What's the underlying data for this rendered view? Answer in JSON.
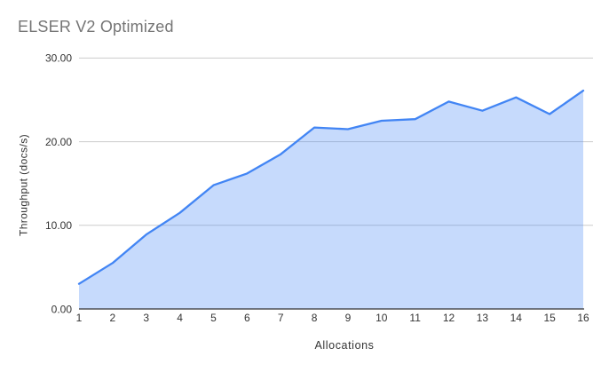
{
  "chart_data": {
    "type": "area",
    "title": "ELSER V2 Optimized",
    "xlabel": "Allocations",
    "ylabel": "Throughput (docs/s)",
    "x": [
      1,
      2,
      3,
      4,
      5,
      6,
      7,
      8,
      9,
      10,
      11,
      12,
      13,
      14,
      15,
      16
    ],
    "xtick_labels": [
      "1",
      "2",
      "3",
      "4",
      "5",
      "6",
      "7",
      "8",
      "9",
      "10",
      "11",
      "12",
      "13",
      "14",
      "15",
      "16"
    ],
    "values": [
      3.0,
      5.5,
      8.9,
      11.5,
      14.8,
      16.2,
      18.5,
      21.7,
      21.5,
      22.5,
      22.7,
      24.8,
      23.7,
      25.3,
      23.3,
      26.1
    ],
    "ylim": [
      0,
      30
    ],
    "yticks": [
      0,
      10,
      20,
      30
    ],
    "ytick_labels": [
      "0.00",
      "10.00",
      "20.00",
      "30.00"
    ],
    "grid": "horizontal",
    "legend": "none",
    "colors": {
      "line": "#4285f4",
      "fill": "rgba(66,133,244,0.3)",
      "grid": "#cccccc",
      "axis_line": "#333333",
      "tick_text": "#333333",
      "title_text": "#757575"
    }
  }
}
